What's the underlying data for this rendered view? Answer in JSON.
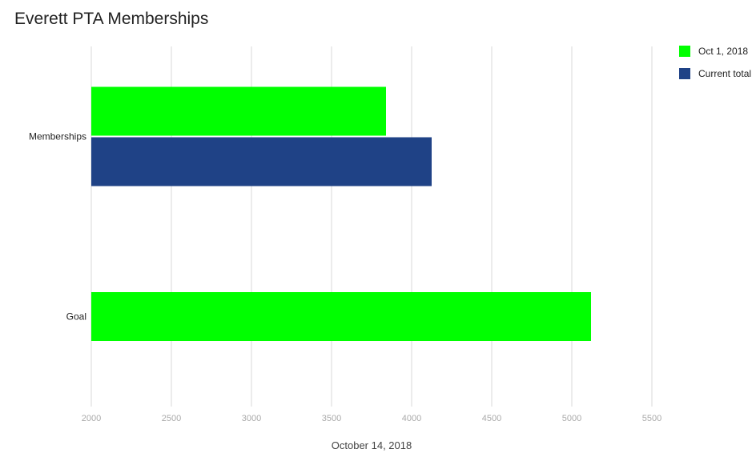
{
  "chart_data": {
    "type": "bar",
    "orientation": "horizontal",
    "title": "Everett PTA Memberships",
    "xlabel": "October 14, 2018",
    "ylabel": "",
    "categories": [
      "Memberships",
      "Goal"
    ],
    "series": [
      {
        "name": "Oct 1, 2018",
        "color": "#00ff00",
        "values": [
          3840,
          5120
        ]
      },
      {
        "name": "Current total",
        "color": "#1f4286",
        "values": [
          4125,
          null
        ]
      }
    ],
    "xlim": [
      2000,
      5500
    ],
    "xticks": [
      "2000",
      "2500",
      "3000",
      "3500",
      "4000",
      "4500",
      "5000",
      "5500"
    ],
    "grid": true,
    "legend_position": "right"
  }
}
